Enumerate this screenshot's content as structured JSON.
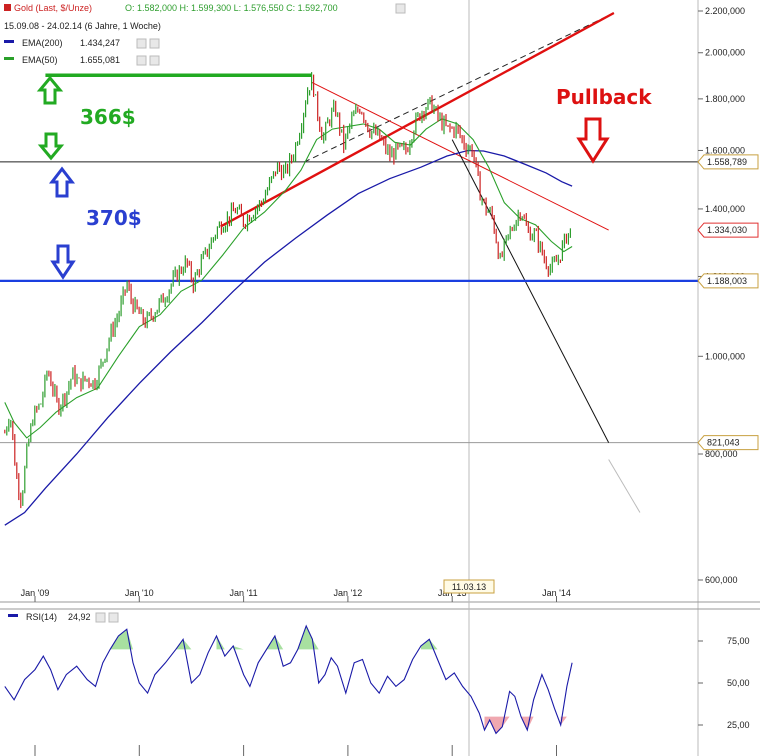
{
  "chart_data": [
    {
      "type": "line",
      "header": {
        "title": "Gold (Last, $/Unze)",
        "ohlc": "O: 1.582,000  H: 1.599,300  L: 1.576,550  C: 1.592,700",
        "range": "15.09.08 - 24.02.14 (6 Jahre, 1 Woche)",
        "ema200_label": "EMA(200)",
        "ema200_value": "1.434,247",
        "ema50_label": "EMA(50)",
        "ema50_value": "1.655,081"
      },
      "colors": {
        "up": "#2e9e2e",
        "down": "#cc2222",
        "ema50": "#2aa02a",
        "ema200": "#1a1aa8",
        "support": "#1a3fe0",
        "trend_red": "#e01010"
      },
      "x_ticks": [
        "Jan '09",
        "Jan '10",
        "Jan '11",
        "Jan '12",
        "Jan '13",
        "Jan '14"
      ],
      "y_ticks": [
        "2.200,000",
        "2.000,000",
        "1.800,000",
        "1.600,000",
        "1.400,000",
        "1.200,000",
        "1.000,000",
        "800,000",
        "600,000"
      ],
      "price_tags": [
        {
          "value": 1558.789,
          "label": "1.558,789",
          "color": "#c8a040"
        },
        {
          "value": 1334.03,
          "label": "1.334,030",
          "color": "#e03030"
        },
        {
          "value": 1188.003,
          "label": "1.188,003",
          "color": "#c8a040"
        },
        {
          "value": 821.043,
          "label": "821,043",
          "color": "#c8a040"
        }
      ],
      "date_marker": "11.03.13",
      "closes": [
        [
          2008.71,
          840
        ],
        [
          2008.76,
          880
        ],
        [
          2008.82,
          760
        ],
        [
          2008.87,
          720
        ],
        [
          2008.92,
          800
        ],
        [
          2008.98,
          870
        ],
        [
          2009.06,
          900
        ],
        [
          2009.12,
          970
        ],
        [
          2009.17,
          930
        ],
        [
          2009.22,
          890
        ],
        [
          2009.3,
          920
        ],
        [
          2009.36,
          960
        ],
        [
          2009.42,
          940
        ],
        [
          2009.5,
          950
        ],
        [
          2009.57,
          940
        ],
        [
          2009.65,
          990
        ],
        [
          2009.72,
          1050
        ],
        [
          2009.8,
          1100
        ],
        [
          2009.88,
          1180
        ],
        [
          2009.93,
          1130
        ],
        [
          2010.0,
          1100
        ],
        [
          2010.06,
          1080
        ],
        [
          2010.15,
          1110
        ],
        [
          2010.25,
          1150
        ],
        [
          2010.35,
          1200
        ],
        [
          2010.45,
          1240
        ],
        [
          2010.52,
          1180
        ],
        [
          2010.58,
          1230
        ],
        [
          2010.65,
          1270
        ],
        [
          2010.75,
          1340
        ],
        [
          2010.85,
          1370
        ],
        [
          2010.93,
          1400
        ],
        [
          2011.0,
          1360
        ],
        [
          2011.08,
          1390
        ],
        [
          2011.17,
          1420
        ],
        [
          2011.25,
          1480
        ],
        [
          2011.32,
          1540
        ],
        [
          2011.4,
          1520
        ],
        [
          2011.48,
          1590
        ],
        [
          2011.55,
          1700
        ],
        [
          2011.62,
          1850
        ],
        [
          2011.66,
          1880
        ],
        [
          2011.7,
          1760
        ],
        [
          2011.76,
          1640
        ],
        [
          2011.82,
          1720
        ],
        [
          2011.88,
          1760
        ],
        [
          2011.96,
          1620
        ],
        [
          2012.04,
          1720
        ],
        [
          2012.12,
          1770
        ],
        [
          2012.2,
          1680
        ],
        [
          2012.3,
          1650
        ],
        [
          2012.4,
          1580
        ],
        [
          2012.48,
          1600
        ],
        [
          2012.56,
          1600
        ],
        [
          2012.64,
          1700
        ],
        [
          2012.72,
          1760
        ],
        [
          2012.8,
          1780
        ],
        [
          2012.87,
          1720
        ],
        [
          2012.95,
          1680
        ],
        [
          2013.04,
          1680
        ],
        [
          2013.12,
          1620
        ],
        [
          2013.2,
          1600
        ],
        [
          2013.26,
          1460
        ],
        [
          2013.32,
          1400
        ],
        [
          2013.38,
          1380
        ],
        [
          2013.46,
          1240
        ],
        [
          2013.52,
          1300
        ],
        [
          2013.6,
          1360
        ],
        [
          2013.66,
          1400
        ],
        [
          2013.72,
          1330
        ],
        [
          2013.8,
          1320
        ],
        [
          2013.88,
          1250
        ],
        [
          2013.95,
          1220
        ],
        [
          2014.02,
          1250
        ],
        [
          2014.1,
          1320
        ],
        [
          2014.15,
          1335
        ]
      ],
      "ema50": [
        [
          2008.71,
          900
        ],
        [
          2008.8,
          860
        ],
        [
          2008.92,
          830
        ],
        [
          2009.05,
          850
        ],
        [
          2009.2,
          880
        ],
        [
          2009.4,
          910
        ],
        [
          2009.6,
          930
        ],
        [
          2009.8,
          1000
        ],
        [
          2010.0,
          1070
        ],
        [
          2010.2,
          1100
        ],
        [
          2010.4,
          1160
        ],
        [
          2010.6,
          1190
        ],
        [
          2010.8,
          1260
        ],
        [
          2011.0,
          1340
        ],
        [
          2011.2,
          1390
        ],
        [
          2011.4,
          1460
        ],
        [
          2011.55,
          1530
        ],
        [
          2011.7,
          1640
        ],
        [
          2011.85,
          1680
        ],
        [
          2012.0,
          1690
        ],
        [
          2012.15,
          1700
        ],
        [
          2012.3,
          1680
        ],
        [
          2012.45,
          1630
        ],
        [
          2012.6,
          1620
        ],
        [
          2012.75,
          1680
        ],
        [
          2012.9,
          1720
        ],
        [
          2013.05,
          1700
        ],
        [
          2013.2,
          1640
        ],
        [
          2013.35,
          1540
        ],
        [
          2013.5,
          1420
        ],
        [
          2013.65,
          1370
        ],
        [
          2013.8,
          1350
        ],
        [
          2013.95,
          1300
        ],
        [
          2014.07,
          1270
        ],
        [
          2014.15,
          1285
        ]
      ],
      "ema200": [
        [
          2008.71,
          680
        ],
        [
          2008.9,
          700
        ],
        [
          2009.1,
          740
        ],
        [
          2009.4,
          800
        ],
        [
          2009.7,
          870
        ],
        [
          2010.0,
          940
        ],
        [
          2010.3,
          1010
        ],
        [
          2010.6,
          1080
        ],
        [
          2010.9,
          1160
        ],
        [
          2011.2,
          1240
        ],
        [
          2011.5,
          1310
        ],
        [
          2011.8,
          1380
        ],
        [
          2012.1,
          1450
        ],
        [
          2012.4,
          1500
        ],
        [
          2012.7,
          1540
        ],
        [
          2012.95,
          1580
        ],
        [
          2013.15,
          1600
        ],
        [
          2013.3,
          1598
        ],
        [
          2013.5,
          1580
        ],
        [
          2013.7,
          1550
        ],
        [
          2013.9,
          1520
        ],
        [
          2014.05,
          1490
        ],
        [
          2014.15,
          1475
        ]
      ],
      "rsi": {
        "label": "RSI(14)",
        "value": "24,92",
        "y_ticks": [
          "75,00",
          "50,00",
          "25,00"
        ],
        "points": [
          [
            2008.71,
            48
          ],
          [
            2008.8,
            40
          ],
          [
            2008.9,
            52
          ],
          [
            2009.0,
            58
          ],
          [
            2009.08,
            66
          ],
          [
            2009.15,
            58
          ],
          [
            2009.22,
            46
          ],
          [
            2009.3,
            55
          ],
          [
            2009.4,
            60
          ],
          [
            2009.5,
            52
          ],
          [
            2009.58,
            48
          ],
          [
            2009.65,
            62
          ],
          [
            2009.72,
            70
          ],
          [
            2009.8,
            78
          ],
          [
            2009.88,
            82
          ],
          [
            2009.94,
            62
          ],
          [
            2010.0,
            50
          ],
          [
            2010.08,
            44
          ],
          [
            2010.15,
            55
          ],
          [
            2010.25,
            62
          ],
          [
            2010.35,
            70
          ],
          [
            2010.42,
            76
          ],
          [
            2010.5,
            50
          ],
          [
            2010.58,
            55
          ],
          [
            2010.66,
            68
          ],
          [
            2010.74,
            78
          ],
          [
            2010.82,
            66
          ],
          [
            2010.9,
            72
          ],
          [
            2011.0,
            55
          ],
          [
            2011.06,
            48
          ],
          [
            2011.14,
            62
          ],
          [
            2011.22,
            70
          ],
          [
            2011.3,
            78
          ],
          [
            2011.38,
            60
          ],
          [
            2011.45,
            62
          ],
          [
            2011.52,
            70
          ],
          [
            2011.6,
            84
          ],
          [
            2011.66,
            76
          ],
          [
            2011.72,
            50
          ],
          [
            2011.78,
            55
          ],
          [
            2011.84,
            65
          ],
          [
            2011.9,
            60
          ],
          [
            2011.98,
            44
          ],
          [
            2012.06,
            62
          ],
          [
            2012.14,
            64
          ],
          [
            2012.22,
            50
          ],
          [
            2012.3,
            44
          ],
          [
            2012.38,
            54
          ],
          [
            2012.46,
            48
          ],
          [
            2012.54,
            52
          ],
          [
            2012.62,
            64
          ],
          [
            2012.7,
            72
          ],
          [
            2012.78,
            76
          ],
          [
            2012.86,
            64
          ],
          [
            2012.94,
            52
          ],
          [
            2013.02,
            56
          ],
          [
            2013.1,
            48
          ],
          [
            2013.18,
            42
          ],
          [
            2013.26,
            32
          ],
          [
            2013.31,
            22
          ],
          [
            2013.36,
            28
          ],
          [
            2013.42,
            20
          ],
          [
            2013.48,
            24
          ],
          [
            2013.55,
            45
          ],
          [
            2013.6,
            42
          ],
          [
            2013.66,
            30
          ],
          [
            2013.72,
            22
          ],
          [
            2013.78,
            40
          ],
          [
            2013.86,
            55
          ],
          [
            2013.92,
            46
          ],
          [
            2013.98,
            35
          ],
          [
            2014.04,
            25
          ],
          [
            2014.1,
            48
          ],
          [
            2014.15,
            62
          ]
        ]
      }
    }
  ],
  "annotations": {
    "pullback": "Pullback",
    "up_366": "366$",
    "down_370": "370$"
  }
}
